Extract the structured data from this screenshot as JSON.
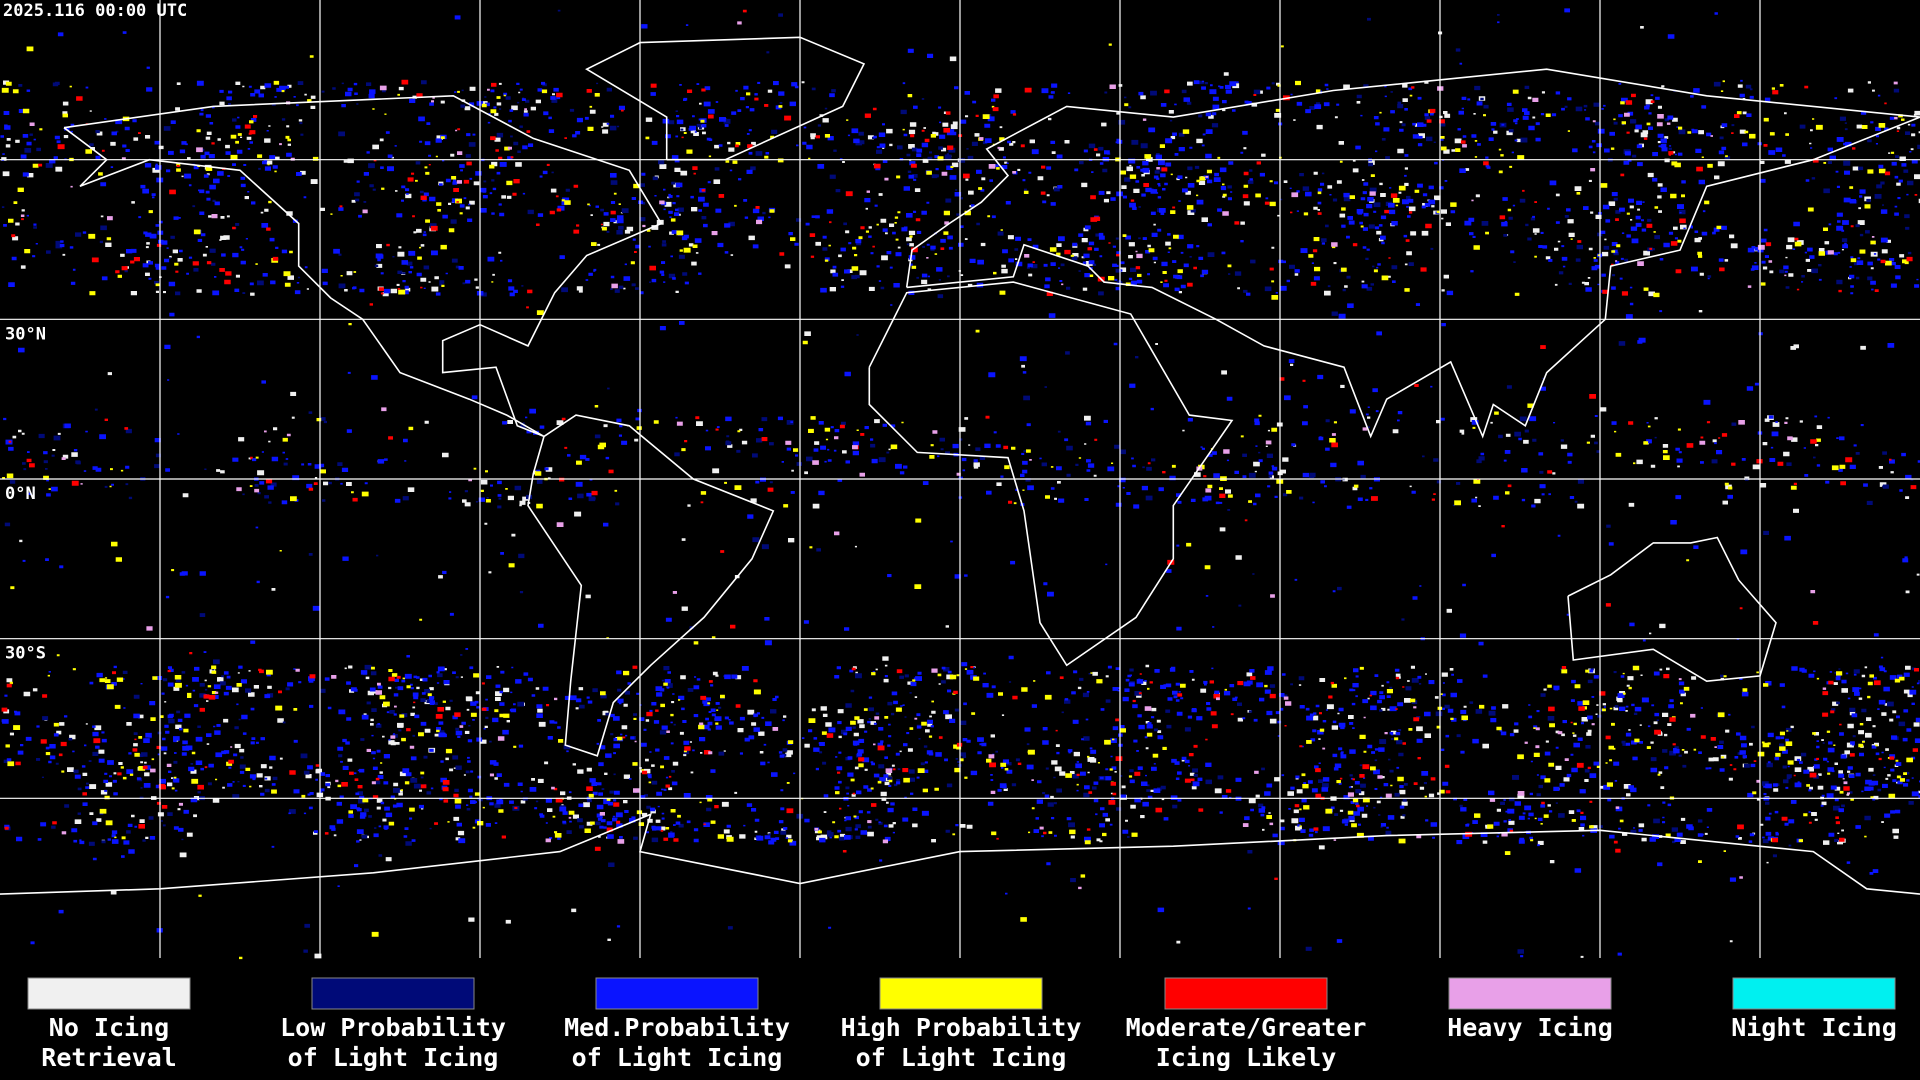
{
  "timestamp": "2025.116 00:00 UTC",
  "map": {
    "latitude_labels": [
      "30°N",
      "0°N",
      "30°S"
    ]
  },
  "legend": [
    {
      "lines": [
        "No Icing",
        "Retrieval"
      ],
      "color": "#f0f0f0"
    },
    {
      "lines": [
        "Low Probability",
        "of Light Icing"
      ],
      "color": "#000a78"
    },
    {
      "lines": [
        "Med.Probability",
        "of Light Icing"
      ],
      "color": "#0a14ff"
    },
    {
      "lines": [
        "High Probability",
        "of Light Icing"
      ],
      "color": "#ffff00"
    },
    {
      "lines": [
        "Moderate/Greater",
        "Icing Likely"
      ],
      "color": "#ff0000"
    },
    {
      "lines": [
        "Heavy Icing"
      ],
      "color": "#e8a0e8"
    },
    {
      "lines": [
        "Night Icing"
      ],
      "color": "#00f0f0"
    }
  ]
}
